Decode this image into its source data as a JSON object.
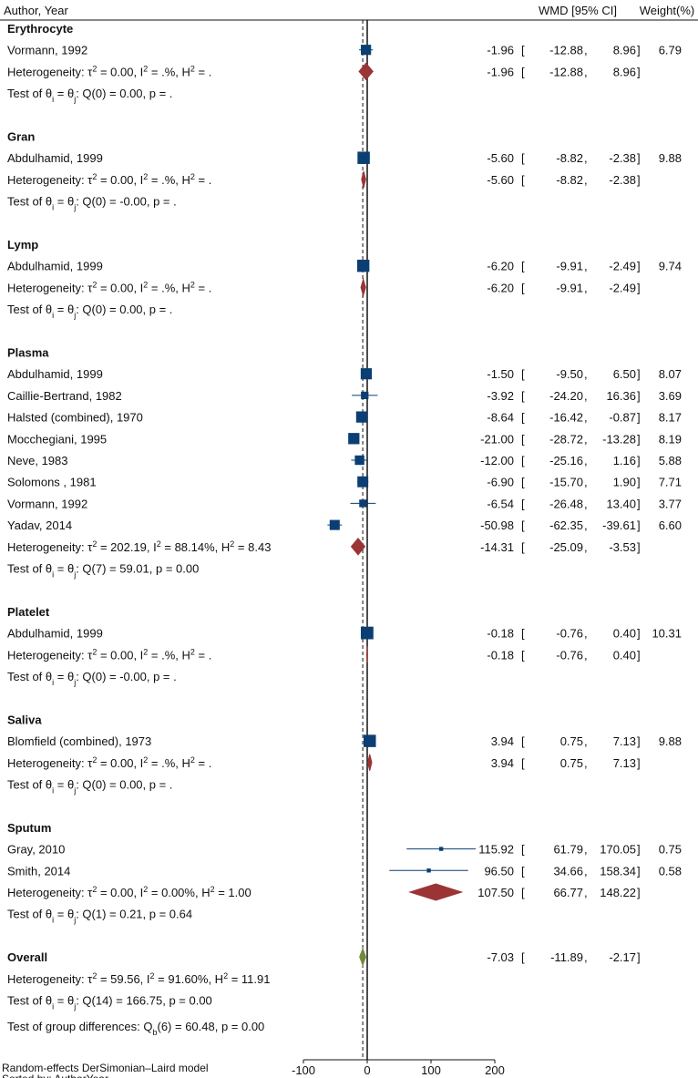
{
  "colors": {
    "study": "#0b3f73",
    "subgroup": "#9b3535",
    "overall": "#6f8a3e",
    "axis": "#111111"
  },
  "header": {
    "author": "Author, Year",
    "wmd": "WMD [95% CI]",
    "weight": "Weight(%)"
  },
  "chart_data": {
    "type": "forest",
    "measure": "WMD",
    "xlim": [
      -100,
      200
    ],
    "xticks": [
      -100,
      0,
      100,
      200
    ],
    "null_line": 0,
    "overall_line": -7.03,
    "groups": [
      {
        "name": "Erythrocyte",
        "studies": [
          {
            "label": "Vormann, 1992",
            "est": -1.96,
            "lo": -12.88,
            "hi": 8.96,
            "est_txt": "-1.96",
            "lo_txt": "-12.88",
            "hi_txt": "8.96",
            "weight": "6.79"
          }
        ],
        "summary": {
          "est": -1.96,
          "lo": -12.88,
          "hi": 8.96,
          "est_txt": "-1.96",
          "lo_txt": "-12.88",
          "hi_txt": "8.96"
        },
        "het": {
          "tau2": "0.00",
          "i2": ".%",
          "h2": "."
        },
        "test": {
          "df": "0",
          "q": "0.00",
          "p": "."
        }
      },
      {
        "name": "Gran",
        "studies": [
          {
            "label": "Abdulhamid, 1999",
            "est": -5.6,
            "lo": -8.82,
            "hi": -2.38,
            "est_txt": "-5.60",
            "lo_txt": "-8.82",
            "hi_txt": "-2.38",
            "weight": "9.88"
          }
        ],
        "summary": {
          "est": -5.6,
          "lo": -8.82,
          "hi": -2.38,
          "est_txt": "-5.60",
          "lo_txt": "-8.82",
          "hi_txt": "-2.38"
        },
        "het": {
          "tau2": "0.00",
          "i2": ".%",
          "h2": "."
        },
        "test": {
          "df": "0",
          "q": "-0.00",
          "p": "."
        }
      },
      {
        "name": "Lymp",
        "studies": [
          {
            "label": "Abdulhamid, 1999",
            "est": -6.2,
            "lo": -9.91,
            "hi": -2.49,
            "est_txt": "-6.20",
            "lo_txt": "-9.91",
            "hi_txt": "-2.49",
            "weight": "9.74"
          }
        ],
        "summary": {
          "est": -6.2,
          "lo": -9.91,
          "hi": -2.49,
          "est_txt": "-6.20",
          "lo_txt": "-9.91",
          "hi_txt": "-2.49"
        },
        "het": {
          "tau2": "0.00",
          "i2": ".%",
          "h2": "."
        },
        "test": {
          "df": "0",
          "q": "0.00",
          "p": "."
        }
      },
      {
        "name": "Plasma",
        "studies": [
          {
            "label": "Abdulhamid, 1999",
            "est": -1.5,
            "lo": -9.5,
            "hi": 6.5,
            "est_txt": "-1.50",
            "lo_txt": "-9.50",
            "hi_txt": "6.50",
            "weight": "8.07"
          },
          {
            "label": "Caillie-Bertrand, 1982",
            "est": -3.92,
            "lo": -24.2,
            "hi": 16.36,
            "est_txt": "-3.92",
            "lo_txt": "-24.20",
            "hi_txt": "16.36",
            "weight": "3.69"
          },
          {
            "label": "Halsted (combined), 1970",
            "est": -8.64,
            "lo": -16.42,
            "hi": -0.87,
            "est_txt": "-8.64",
            "lo_txt": "-16.42",
            "hi_txt": "-0.87",
            "weight": "8.17"
          },
          {
            "label": "Mocchegiani, 1995",
            "est": -21.0,
            "lo": -28.72,
            "hi": -13.28,
            "est_txt": "-21.00",
            "lo_txt": "-28.72",
            "hi_txt": "-13.28",
            "weight": "8.19"
          },
          {
            "label": "Neve, 1983",
            "est": -12.0,
            "lo": -25.16,
            "hi": 1.16,
            "est_txt": "-12.00",
            "lo_txt": "-25.16",
            "hi_txt": "1.16",
            "weight": "5.88"
          },
          {
            "label": "Solomons , 1981",
            "est": -6.9,
            "lo": -15.7,
            "hi": 1.9,
            "est_txt": "-6.90",
            "lo_txt": "-15.70",
            "hi_txt": "1.90",
            "weight": "7.71"
          },
          {
            "label": "Vormann, 1992",
            "est": -6.54,
            "lo": -26.48,
            "hi": 13.4,
            "est_txt": "-6.54",
            "lo_txt": "-26.48",
            "hi_txt": "13.40",
            "weight": "3.77"
          },
          {
            "label": "Yadav, 2014",
            "est": -50.98,
            "lo": -62.35,
            "hi": -39.61,
            "est_txt": "-50.98",
            "lo_txt": "-62.35",
            "hi_txt": "-39.61",
            "weight": "6.60"
          }
        ],
        "summary": {
          "est": -14.31,
          "lo": -25.09,
          "hi": -3.53,
          "est_txt": "-14.31",
          "lo_txt": "-25.09",
          "hi_txt": "-3.53"
        },
        "het": {
          "tau2": "202.19",
          "i2": "88.14%",
          "h2": "8.43"
        },
        "test": {
          "df": "7",
          "q": "59.01",
          "p": "0.00"
        }
      },
      {
        "name": "Platelet",
        "studies": [
          {
            "label": "Abdulhamid, 1999",
            "est": -0.18,
            "lo": -0.76,
            "hi": 0.4,
            "est_txt": "-0.18",
            "lo_txt": "-0.76",
            "hi_txt": "0.40",
            "weight": "10.31"
          }
        ],
        "summary": {
          "est": -0.18,
          "lo": -0.76,
          "hi": 0.4,
          "est_txt": "-0.18",
          "lo_txt": "-0.76",
          "hi_txt": "0.40"
        },
        "het": {
          "tau2": "0.00",
          "i2": ".%",
          "h2": "."
        },
        "test": {
          "df": "0",
          "q": "-0.00",
          "p": "."
        }
      },
      {
        "name": "Saliva",
        "studies": [
          {
            "label": "Blomfield (combined), 1973",
            "est": 3.94,
            "lo": 0.75,
            "hi": 7.13,
            "est_txt": "3.94",
            "lo_txt": "0.75",
            "hi_txt": "7.13",
            "weight": "9.88"
          }
        ],
        "summary": {
          "est": 3.94,
          "lo": 0.75,
          "hi": 7.13,
          "est_txt": "3.94",
          "lo_txt": "0.75",
          "hi_txt": "7.13"
        },
        "het": {
          "tau2": "0.00",
          "i2": ".%",
          "h2": "."
        },
        "test": {
          "df": "0",
          "q": "0.00",
          "p": "."
        }
      },
      {
        "name": "Sputum",
        "studies": [
          {
            "label": "Gray, 2010",
            "est": 115.92,
            "lo": 61.79,
            "hi": 170.05,
            "est_txt": "115.92",
            "lo_txt": "61.79",
            "hi_txt": "170.05",
            "weight": "0.75"
          },
          {
            "label": "Smith, 2014",
            "est": 96.5,
            "lo": 34.66,
            "hi": 158.34,
            "est_txt": "96.50",
            "lo_txt": "34.66",
            "hi_txt": "158.34",
            "weight": "0.58"
          }
        ],
        "summary": {
          "est": 107.5,
          "lo": 66.77,
          "hi": 148.22,
          "est_txt": "107.50",
          "lo_txt": "66.77",
          "hi_txt": "148.22"
        },
        "het": {
          "tau2": "0.00",
          "i2": "0.00%",
          "h2": "1.00"
        },
        "test": {
          "df": "1",
          "q": "0.21",
          "p": "0.64"
        }
      }
    ],
    "overall": {
      "name": "Overall",
      "est": -7.03,
      "lo": -11.89,
      "hi": -2.17,
      "est_txt": "-7.03",
      "lo_txt": "-11.89",
      "hi_txt": "-2.17",
      "het": {
        "tau2": "59.56",
        "i2": "91.60%",
        "h2": "11.91"
      },
      "test": {
        "df": "14",
        "q": "166.75",
        "p": "0.00"
      }
    },
    "group_diff": {
      "df": "6",
      "q": "60.48",
      "p": "0.00"
    },
    "footnotes": [
      "Random-effects DerSimonian–Laird model",
      "Sorted by: AuthorYear"
    ]
  }
}
